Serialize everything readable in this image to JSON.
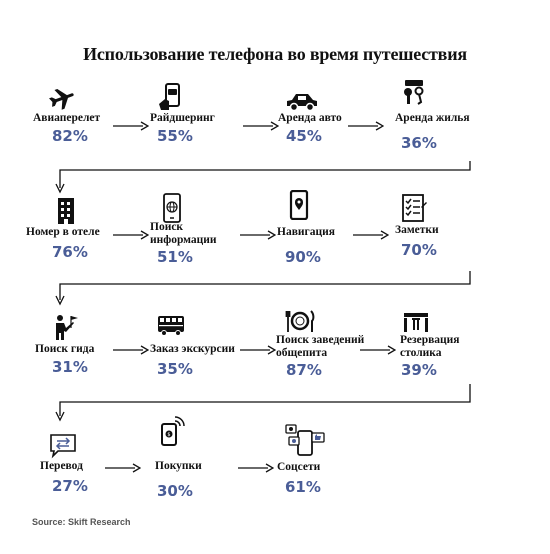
{
  "title": "Использование телефона во время путешествия",
  "source": "Source: Skift Research",
  "accent_color": "#4a5d97",
  "rows": [
    {
      "items": [
        {
          "label": "Авиаперелет",
          "value": "82%",
          "icon": "airplane-icon"
        },
        {
          "label": "Райдшеринг",
          "value": "55%",
          "icon": "phone-car-icon"
        },
        {
          "label": "Аренда авто",
          "value": "45%",
          "icon": "car-icon"
        },
        {
          "label": "Аренда жилья",
          "value": "36%",
          "icon": "keys-icon"
        }
      ]
    },
    {
      "items": [
        {
          "label": "Номер в отеле",
          "value": "76%",
          "icon": "hotel-building-icon"
        },
        {
          "label": "Поиск информации",
          "label_lines": [
            "Поиск",
            "информации"
          ],
          "value": "51%",
          "icon": "phone-globe-icon"
        },
        {
          "label": "Навигация",
          "value": "90%",
          "icon": "phone-map-pin-icon"
        },
        {
          "label": "Заметки",
          "value": "70%",
          "icon": "checklist-icon"
        }
      ]
    },
    {
      "items": [
        {
          "label": "Поиск гида",
          "value": "31%",
          "icon": "tour-guide-icon"
        },
        {
          "label": "Заказ экскурсии",
          "value": "35%",
          "icon": "bus-icon"
        },
        {
          "label": "Поиск заведений общепита",
          "label_lines": [
            "Поиск заведений",
            "общепита"
          ],
          "value": "87%",
          "icon": "plate-cutlery-icon"
        },
        {
          "label": "Резервация столика",
          "label_lines": [
            "Резервация",
            "столика"
          ],
          "value": "39%",
          "icon": "table-chairs-icon"
        }
      ]
    },
    {
      "items": [
        {
          "label": "Перевод",
          "value": "27%",
          "icon": "translate-chat-icon"
        },
        {
          "label": "Покупки",
          "value": "30%",
          "icon": "phone-payment-icon"
        },
        {
          "label": "Соцсети",
          "value": "61%",
          "icon": "social-media-icon"
        }
      ]
    }
  ]
}
